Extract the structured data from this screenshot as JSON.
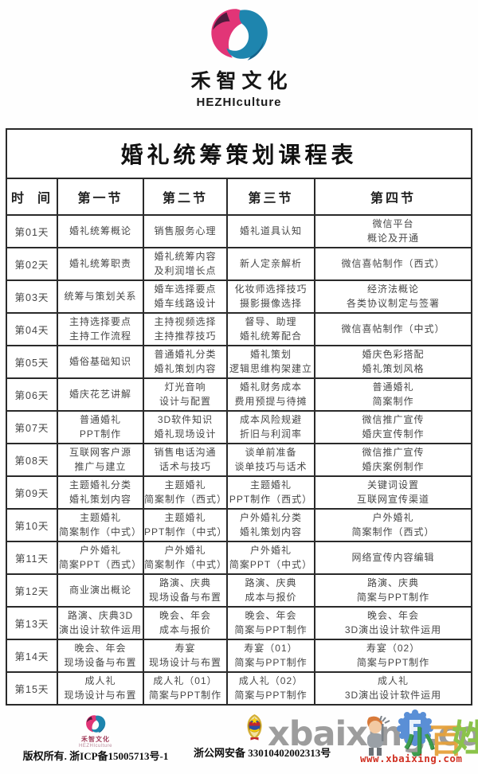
{
  "brand": {
    "name": "禾智文化",
    "subtitle": "HEZHIculture"
  },
  "table": {
    "title": "婚礼统筹策划课程表",
    "headers": [
      "时  间",
      "第一节",
      "第二节",
      "第三节",
      "第四节"
    ],
    "rows": [
      {
        "day": "第01天",
        "cells": [
          [
            "婚礼统筹概论"
          ],
          [
            "销售服务心理"
          ],
          [
            "婚礼道具认知"
          ],
          [
            "微信平台",
            "概论及开通"
          ]
        ]
      },
      {
        "day": "第02天",
        "cells": [
          [
            "婚礼统筹职责"
          ],
          [
            "婚礼统筹内容",
            "及利润增长点"
          ],
          [
            "新人定亲解析"
          ],
          [
            "微信喜帖制作（西式）"
          ]
        ]
      },
      {
        "day": "第03天",
        "cells": [
          [
            "统筹与策划关系"
          ],
          [
            "婚车选择要点",
            "婚车线路设计"
          ],
          [
            "化妆师选择技巧",
            "摄影摄像选择"
          ],
          [
            "经济法概论",
            "各类协议制定与签署"
          ]
        ]
      },
      {
        "day": "第04天",
        "cells": [
          [
            "主持选择要点",
            "主持工作流程"
          ],
          [
            "主持视频选择",
            "主持推荐技巧"
          ],
          [
            "督导、助理",
            "婚礼统筹配合"
          ],
          [
            "微信喜帖制作（中式）"
          ]
        ]
      },
      {
        "day": "第05天",
        "cells": [
          [
            "婚俗基础知识"
          ],
          [
            "普通婚礼分类",
            "婚礼策划内容"
          ],
          [
            "婚礼策划",
            "逻辑思维构架建立"
          ],
          [
            "婚庆色彩搭配",
            "婚礼策划风格"
          ]
        ]
      },
      {
        "day": "第06天",
        "cells": [
          [
            "婚庆花艺讲解"
          ],
          [
            "灯光音响",
            "设计与配置"
          ],
          [
            "婚礼财务成本",
            "费用预提与待摊"
          ],
          [
            "普通婚礼",
            "简案制作"
          ]
        ]
      },
      {
        "day": "第07天",
        "cells": [
          [
            "普通婚礼",
            "PPT制作"
          ],
          [
            "3D软件知识",
            "婚礼现场设计"
          ],
          [
            "成本风险规避",
            "折旧与利润率"
          ],
          [
            "微信推广宣传",
            "婚庆宣传制作"
          ]
        ]
      },
      {
        "day": "第08天",
        "cells": [
          [
            "互联网客户源",
            "推广与建立"
          ],
          [
            "销售电话沟通",
            "话术与技巧"
          ],
          [
            "谈单前准备",
            "谈单技巧与话术"
          ],
          [
            "微信推广宣传",
            "婚庆案例制作"
          ]
        ]
      },
      {
        "day": "第09天",
        "cells": [
          [
            "主题婚礼分类",
            "婚礼策划内容"
          ],
          [
            "主题婚礼",
            "简案制作（西式）"
          ],
          [
            "主题婚礼",
            "PPT制作（西式）"
          ],
          [
            "关键词设置",
            "互联网宣传渠道"
          ]
        ]
      },
      {
        "day": "第10天",
        "cells": [
          [
            "主题婚礼",
            "简案制作（中式）"
          ],
          [
            "主题婚礼",
            "PPT制作（中式）"
          ],
          [
            "户外婚礼分类",
            "婚礼策划内容"
          ],
          [
            "户外婚礼",
            "简案制作（西式）"
          ]
        ]
      },
      {
        "day": "第11天",
        "cells": [
          [
            "户外婚礼",
            "简案PPT（西式）"
          ],
          [
            "户外婚礼",
            "简案制作（中式）"
          ],
          [
            "户外婚礼",
            "简案PPT（中式）"
          ],
          [
            "网络宣传内容编辑"
          ]
        ]
      },
      {
        "day": "第12天",
        "cells": [
          [
            "商业演出概论"
          ],
          [
            "路演、庆典",
            "现场设备与布置"
          ],
          [
            "路演、庆典",
            "成本与报价"
          ],
          [
            "路演、庆典",
            "简案与PPT制作"
          ]
        ]
      },
      {
        "day": "第13天",
        "cells": [
          [
            "路演、庆典3D",
            "演出设计软件运用"
          ],
          [
            "晚会、年会",
            "成本与报价"
          ],
          [
            "晚会、年会",
            "简案与PPT制作"
          ],
          [
            "晚会、年会",
            "3D演出设计软件运用"
          ]
        ]
      },
      {
        "day": "第14天",
        "cells": [
          [
            "晚会、年会",
            "现场设备与布置"
          ],
          [
            "寿宴",
            "现场设计与布置"
          ],
          [
            "寿宴（01）",
            "简案与PPT制作"
          ],
          [
            "寿宴（02）",
            "简案与PPT制作"
          ]
        ]
      },
      {
        "day": "第15天",
        "cells": [
          [
            "成人礼",
            "现场设计与布置"
          ],
          [
            "成人礼（01）",
            "简案与PPT制作"
          ],
          [
            "成人礼（02）",
            "简案与PPT制作"
          ],
          [
            "成人礼",
            "3D演出设计软件运用"
          ]
        ]
      }
    ]
  },
  "footer": {
    "brand_name": "禾智文化",
    "brand_subtitle": "HEZHIculture",
    "copyright": "版权所有. 浙ICP备15005713号-1",
    "police_label": "浙公网安备 33010402002313号",
    "watermark": {
      "large_text": "xbaixing.com",
      "url_text": "www.xbaixing.com",
      "cn_chars": [
        "小",
        "百",
        "姓"
      ]
    }
  },
  "colors": {
    "brand_pink": "#e23577",
    "brand_plum": "#4f1b3c",
    "brand_blue": "#1e85ae",
    "brand_blue_dark": "#14638b",
    "table_border": "#2a2a2a",
    "body_text": "#474747",
    "watermark_gray": "#888888",
    "url_red": "#d03022",
    "badge_gold": "#d4af37",
    "badge_blue": "#2b4ea2",
    "badge_red": "#c1272d",
    "xb_blue": "#5a8fd6",
    "xb_orange": "#e6a23c",
    "xb_green": "#8bc34a"
  }
}
